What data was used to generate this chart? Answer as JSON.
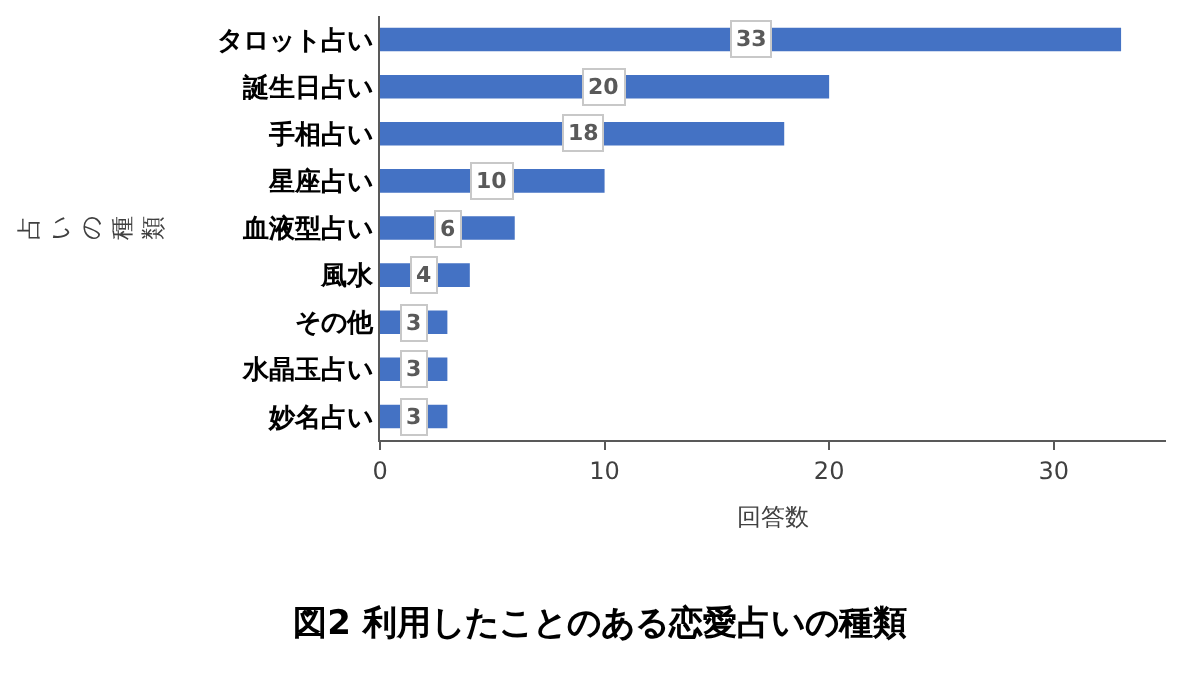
{
  "chart_data": {
    "type": "bar",
    "orientation": "horizontal",
    "title": "図2 利用したことのある恋愛占いの種類",
    "xlabel": "回答数",
    "ylabel": "占いの種類",
    "categories": [
      "タロット占い",
      "誕生日占い",
      "手相占い",
      "星座占い",
      "血液型占い",
      "風水",
      "その他",
      "水晶玉占い",
      "妙名占い"
    ],
    "values": [
      33,
      20,
      18,
      10,
      6,
      4,
      3,
      3,
      3
    ],
    "color": "#4472c4",
    "xlim": [
      0,
      35
    ],
    "xticks": [
      0,
      10,
      20,
      30
    ],
    "grid": false,
    "legend": false,
    "data_labels": true
  }
}
